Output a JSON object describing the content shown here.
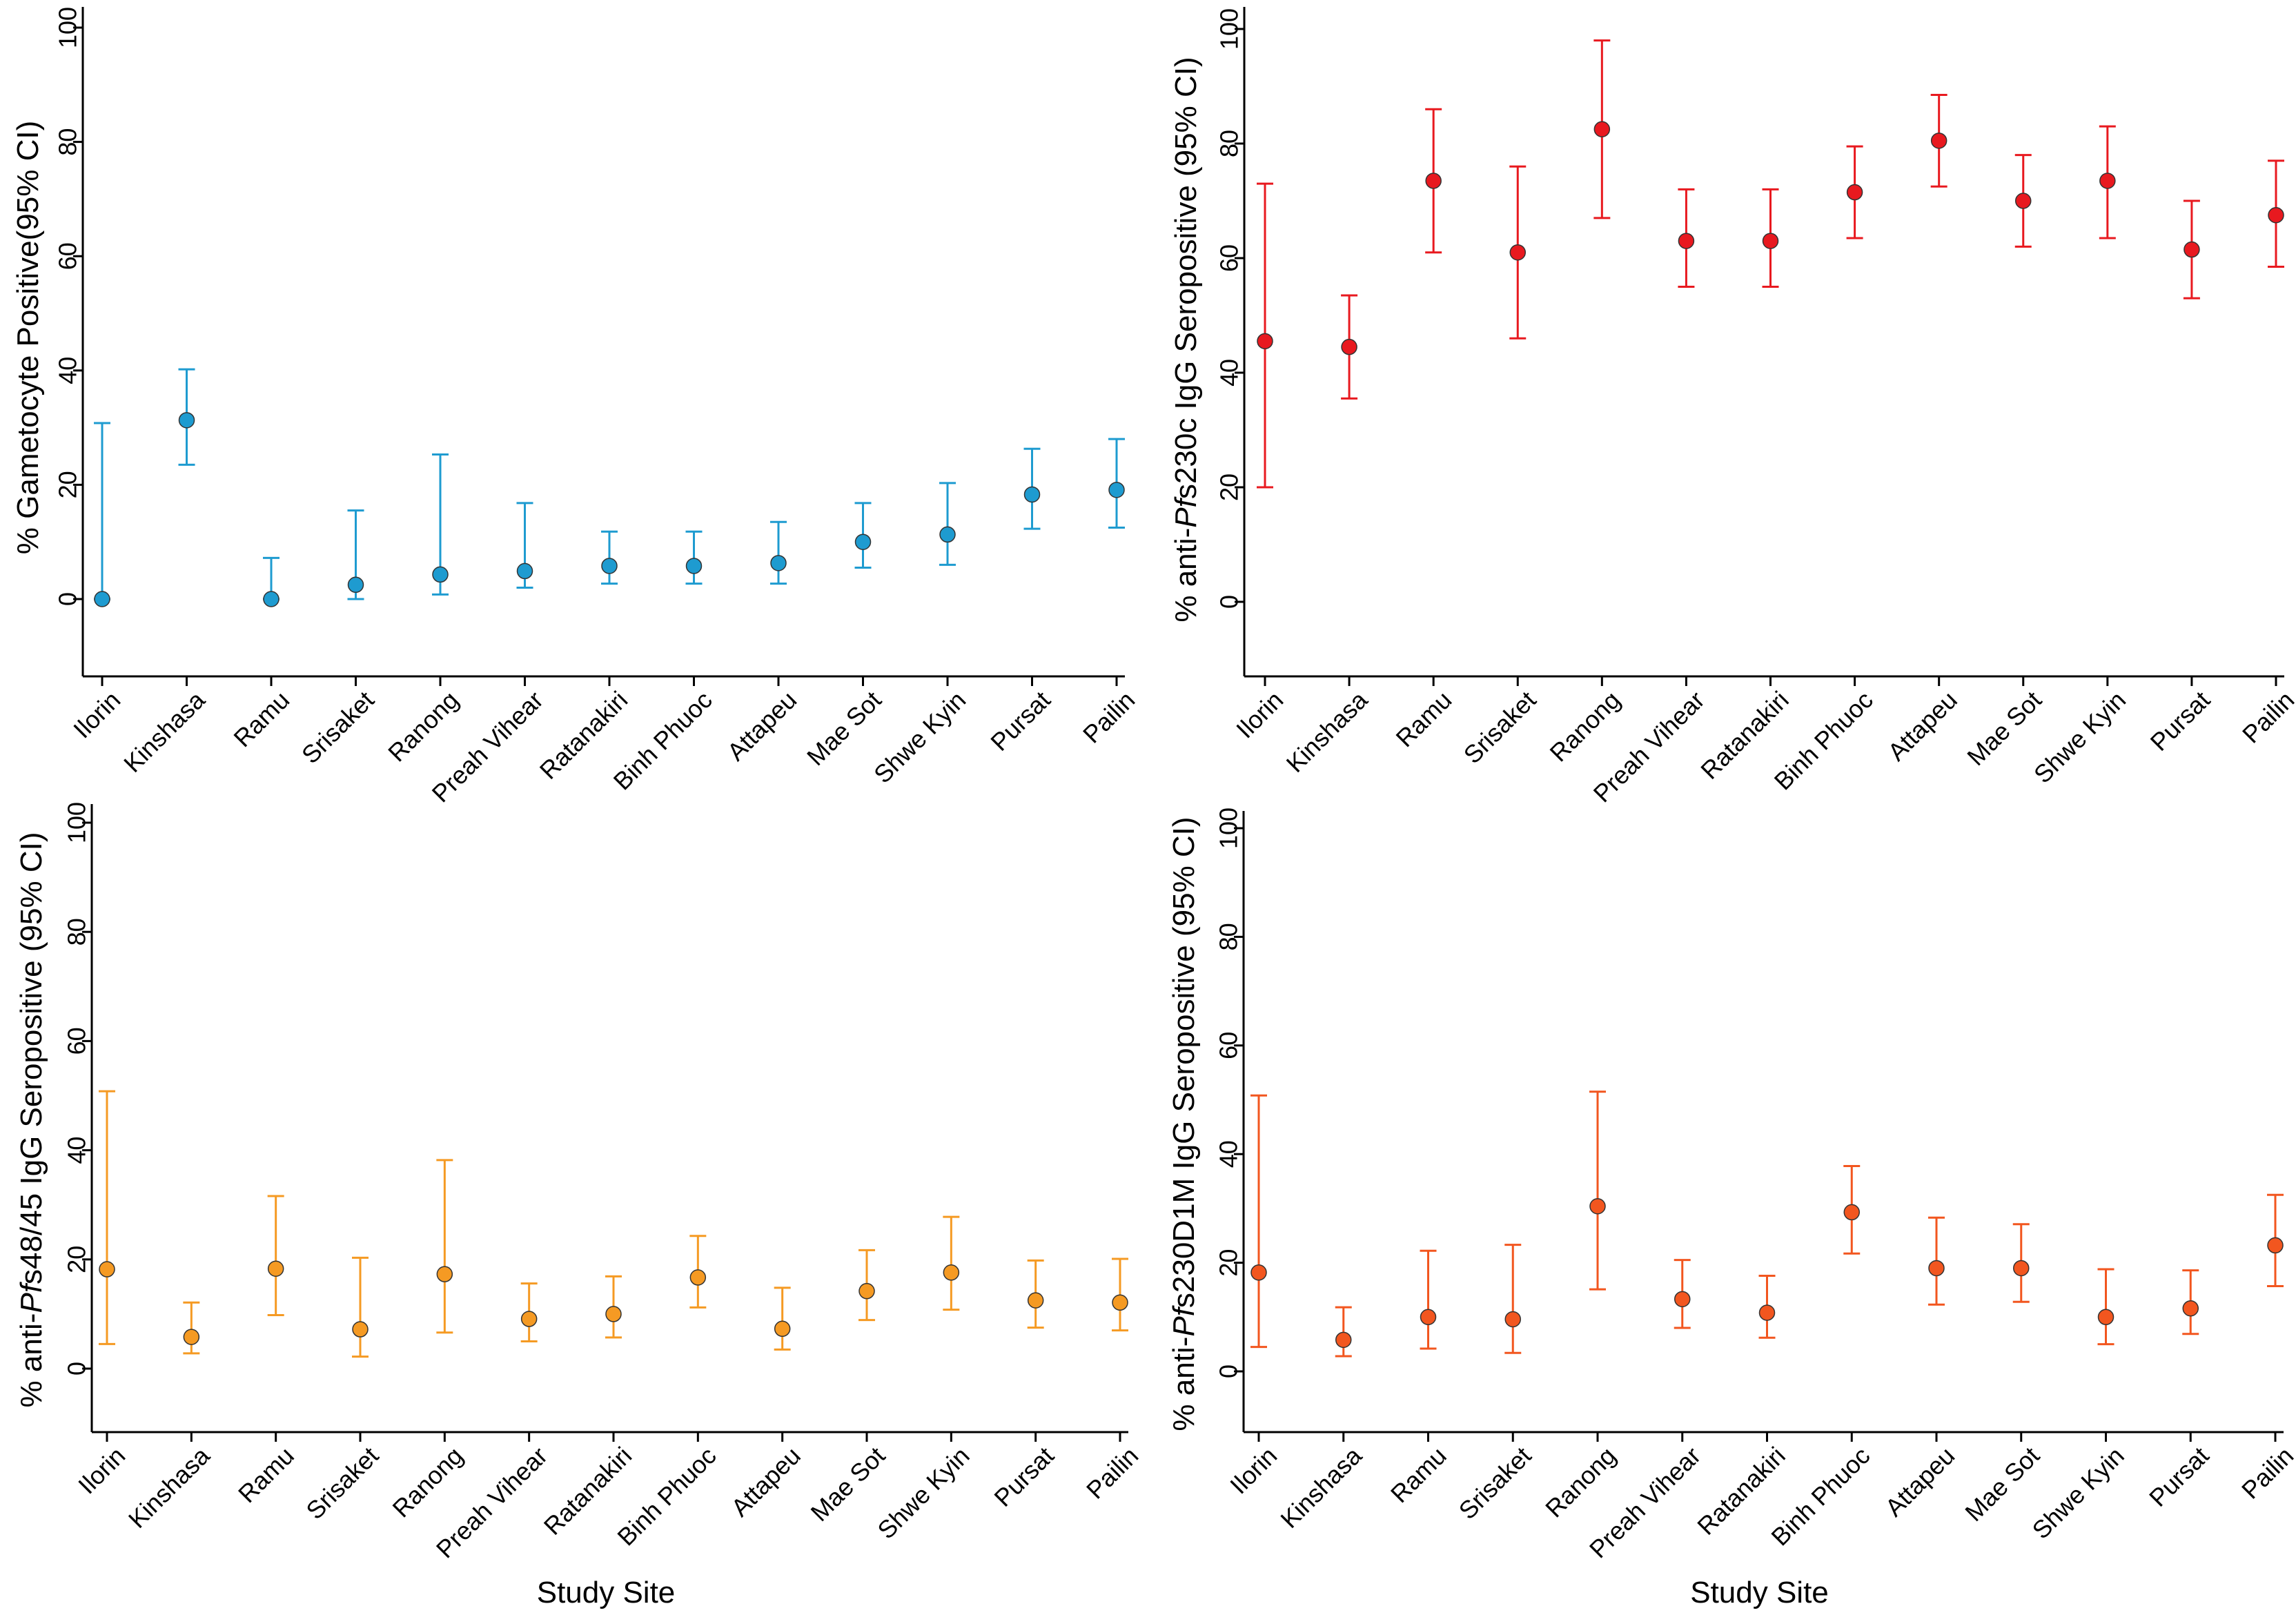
{
  "chart_data": [
    {
      "type": "scatter",
      "panel": "top-left",
      "ylabel": [
        "% Gametocyte Positive(95% CI)"
      ],
      "xlabel": "",
      "color": "#1e9bd0",
      "ylim": [
        -12,
        100
      ],
      "yticks": [
        0,
        20,
        40,
        60,
        80,
        100
      ],
      "ytick_labels": [
        "0",
        "20",
        "40",
        "60",
        "80",
        "100"
      ],
      "categories": [
        "Ilorin",
        "Kinshasa",
        "Ramu",
        "Srisaket",
        "Ranong",
        "Preah Vihear",
        "Ratanakiri",
        "Binh Phuoc",
        "Attapeu",
        "Mae Sot",
        "Shwe Kyin",
        "Pursat",
        "Pailin"
      ],
      "values": [
        0,
        31.3,
        0,
        2.5,
        4.3,
        4.9,
        5.8,
        5.8,
        6.3,
        10.0,
        11.3,
        18.3,
        19.1
      ],
      "ci_lower": [
        0,
        23.5,
        0,
        0,
        0.8,
        2.0,
        2.7,
        2.7,
        2.7,
        5.5,
        6.0,
        12.3,
        12.5
      ],
      "ci_upper": [
        30.8,
        40.2,
        7.2,
        15.5,
        25.3,
        16.8,
        11.8,
        11.8,
        13.5,
        16.8,
        20.3,
        26.3,
        28.0
      ]
    },
    {
      "type": "scatter",
      "panel": "top-right",
      "ylabel": [
        "% anti-",
        "Pf",
        "s230c IgG Seropositive (95% CI)"
      ],
      "xlabel": "",
      "color": "#e8191f",
      "ylim": [
        -13,
        100
      ],
      "yticks": [
        0,
        20,
        40,
        60,
        80,
        100
      ],
      "ytick_labels": [
        "0",
        "20",
        "40",
        "60",
        "80",
        "100"
      ],
      "categories": [
        "Ilorin",
        "Kinshasa",
        "Ramu",
        "Srisaket",
        "Ranong",
        "Preah Vihear",
        "Ratanakiri",
        "Binh Phuoc",
        "Attapeu",
        "Mae Sot",
        "Shwe Kyin",
        "Pursat",
        "Pailin"
      ],
      "values": [
        45.5,
        44.5,
        73.5,
        61.0,
        82.5,
        63.0,
        63.0,
        71.5,
        80.5,
        70.0,
        73.5,
        61.5,
        67.5
      ],
      "ci_lower": [
        20.0,
        35.5,
        61.0,
        46.0,
        67.0,
        55.0,
        55.0,
        63.5,
        72.5,
        62.0,
        63.5,
        53.0,
        58.5
      ],
      "ci_upper": [
        73.0,
        53.5,
        86.0,
        76.0,
        98.0,
        72.0,
        72.0,
        79.5,
        88.5,
        78.0,
        83.0,
        70.0,
        77.0
      ]
    },
    {
      "type": "scatter",
      "panel": "bottom-left",
      "ylabel": [
        "% anti-",
        "Pf",
        "s48/45 IgG Seropositive (95% CI)"
      ],
      "xlabel": "Study Site",
      "color": "#f59a23",
      "ylim": [
        -12,
        100
      ],
      "yticks": [
        0,
        20,
        40,
        60,
        80,
        100
      ],
      "ytick_labels": [
        "0",
        "20",
        "40",
        "60",
        "80",
        "100"
      ],
      "categories": [
        "Ilorin",
        "Kinshasa",
        "Ramu",
        "Srisaket",
        "Ranong",
        "Preah Vihear",
        "Ratanakiri",
        "Binh Phuoc",
        "Attapeu",
        "Mae Sot",
        "Shwe Kyin",
        "Pursat",
        "Pailin"
      ],
      "values": [
        18.2,
        5.8,
        18.3,
        7.2,
        17.3,
        9.1,
        10.0,
        16.7,
        7.3,
        14.2,
        17.6,
        12.5,
        12.1
      ],
      "ci_lower": [
        4.5,
        2.8,
        9.8,
        2.2,
        6.6,
        5.0,
        5.7,
        11.2,
        3.5,
        8.9,
        10.8,
        7.5,
        7.0
      ],
      "ci_upper": [
        50.8,
        12.1,
        31.6,
        20.3,
        38.2,
        15.6,
        16.9,
        24.3,
        14.8,
        21.7,
        27.8,
        19.8,
        20.1
      ]
    },
    {
      "type": "scatter",
      "panel": "bottom-right",
      "ylabel": [
        "% anti-",
        "Pf",
        "s230D1M IgG Seropositive (95% CI)"
      ],
      "xlabel": "Study Site",
      "color": "#f2561f",
      "ylim": [
        -10,
        100
      ],
      "yticks": [
        0,
        20,
        40,
        60,
        80,
        100
      ],
      "ytick_labels": [
        "0",
        "20",
        "40",
        "60",
        "80",
        "100"
      ],
      "categories": [
        "Ilorin",
        "Kinshasa",
        "Ramu",
        "Srisaket",
        "Ranong",
        "Preah Vihear",
        "Ratanakiri",
        "Binh Phuoc",
        "Attapeu",
        "Mae Sot",
        "Shwe Kyin",
        "Pursat",
        "Pailin"
      ],
      "values": [
        18.2,
        5.8,
        10.0,
        9.6,
        30.4,
        13.3,
        10.8,
        29.3,
        19.0,
        19.0,
        10.0,
        11.6,
        23.2
      ],
      "ci_lower": [
        4.5,
        2.8,
        4.2,
        3.4,
        15.1,
        8.0,
        6.2,
        21.7,
        12.3,
        12.8,
        5.0,
        6.9,
        15.7
      ],
      "ci_upper": [
        50.8,
        11.8,
        22.2,
        23.3,
        51.5,
        20.5,
        17.6,
        37.8,
        28.3,
        27.1,
        18.8,
        18.6,
        32.5
      ]
    }
  ]
}
